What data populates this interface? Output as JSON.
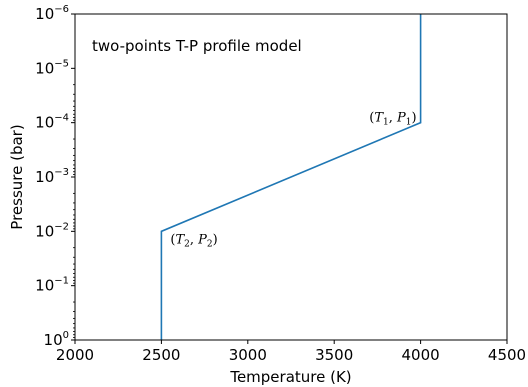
{
  "chart_data": {
    "type": "line",
    "title": "",
    "annotation": "two-points T-P profile model",
    "xlabel": "Temperature (K)",
    "ylabel": "Pressure (bar)",
    "xlim": [
      2000,
      4500
    ],
    "ylim": [
      1,
      1e-06
    ],
    "yscale": "log",
    "grid": false,
    "x_ticks": [
      "2000",
      "2500",
      "3000",
      "3500",
      "4000",
      "4500"
    ],
    "y_ticks": [
      {
        "base": "10",
        "exp": "0"
      },
      {
        "base": "10",
        "exp": "−1"
      },
      {
        "base": "10",
        "exp": "−2"
      },
      {
        "base": "10",
        "exp": "−3"
      },
      {
        "base": "10",
        "exp": "−4"
      },
      {
        "base": "10",
        "exp": "−5"
      },
      {
        "base": "10",
        "exp": "−6"
      }
    ],
    "series": [
      {
        "color": "#1f77b4",
        "points": [
          {
            "x": 2500,
            "y": 1
          },
          {
            "x": 2500,
            "y": 0.01
          },
          {
            "x": 4000,
            "y": 0.0001
          },
          {
            "x": 4000,
            "y": 1e-06
          }
        ]
      }
    ],
    "point_labels": [
      {
        "T": "T",
        "T_sub": "1",
        "P": "P",
        "P_sub": "1",
        "x": 4000,
        "y": 0.0001
      },
      {
        "T": "T",
        "T_sub": "2",
        "P": "P",
        "P_sub": "2",
        "x": 2500,
        "y": 0.01
      }
    ]
  }
}
